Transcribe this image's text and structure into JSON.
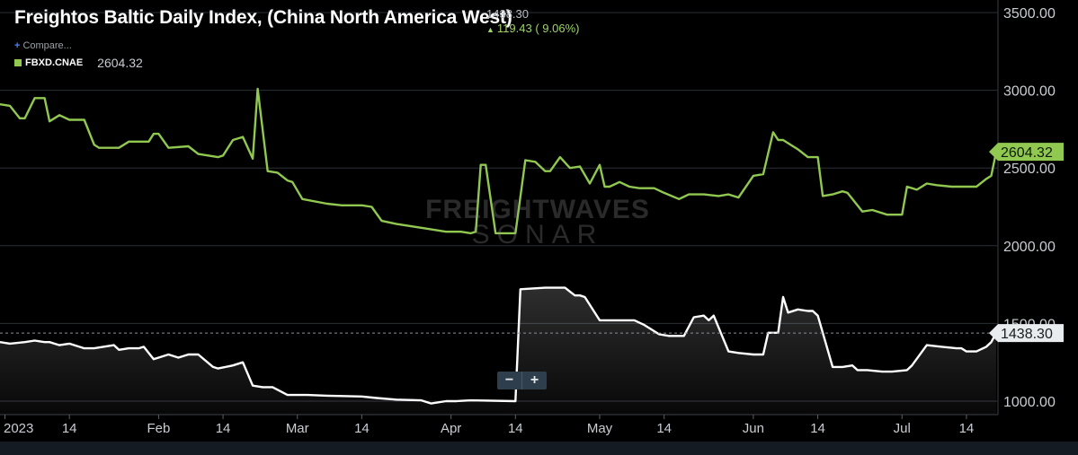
{
  "header": {
    "title": "Freightos Baltic Daily Index, (China North America West)",
    "last_value": "1438.30",
    "change_text": "119.43 ( 9.06%)",
    "change_arrow_icon": "triangle-up-icon"
  },
  "compare_label": "Compare...",
  "legend": {
    "symbol": "FBXD.CNAE",
    "value": "2604.32",
    "color": "#91c850"
  },
  "watermark": {
    "top": "FREIGHTWAVES",
    "bottom": "SONAR"
  },
  "zoom": {
    "minus": "−",
    "plus": "+"
  },
  "chart_data": {
    "type": "line",
    "title": "Freightos Baltic Daily Index, (China North America West)",
    "x_tick_labels": [
      "2023",
      "14",
      "Feb",
      "14",
      "Mar",
      "14",
      "Apr",
      "14",
      "May",
      "14",
      "Jun",
      "14",
      "Jul",
      "14"
    ],
    "x_tick_dates": [
      "2023-01-01",
      "2023-01-14",
      "2023-02-01",
      "2023-02-14",
      "2023-03-01",
      "2023-03-14",
      "2023-04-01",
      "2023-04-14",
      "2023-05-01",
      "2023-05-14",
      "2023-06-01",
      "2023-06-14",
      "2023-07-01",
      "2023-07-14"
    ],
    "y_tick_labels": [
      "1000.00",
      "1500.00",
      "2000.00",
      "2500.00",
      "3000.00",
      "3500.00"
    ],
    "ylim": [
      1000,
      3500
    ],
    "grid": true,
    "series": [
      {
        "name": "FBXD.CNAE",
        "color": "#91c850",
        "last_label": "2604.32",
        "x": [
          "2022-12-31",
          "2023-01-02",
          "2023-01-04",
          "2023-01-05",
          "2023-01-07",
          "2023-01-09",
          "2023-01-10",
          "2023-01-12",
          "2023-01-14",
          "2023-01-17",
          "2023-01-19",
          "2023-01-20",
          "2023-01-24",
          "2023-01-26",
          "2023-01-30",
          "2023-01-31",
          "2023-02-01",
          "2023-02-03",
          "2023-02-07",
          "2023-02-09",
          "2023-02-11",
          "2023-02-13",
          "2023-02-14",
          "2023-02-16",
          "2023-02-18",
          "2023-02-20",
          "2023-02-21",
          "2023-02-23",
          "2023-02-25",
          "2023-02-27",
          "2023-02-28",
          "2023-03-02",
          "2023-03-07",
          "2023-03-10",
          "2023-03-12",
          "2023-03-14",
          "2023-03-16",
          "2023-03-18",
          "2023-03-21",
          "2023-03-27",
          "2023-03-31",
          "2023-04-03",
          "2023-04-05",
          "2023-04-06",
          "2023-04-07",
          "2023-04-08",
          "2023-04-10",
          "2023-04-12",
          "2023-04-13",
          "2023-04-14",
          "2023-04-16",
          "2023-04-18",
          "2023-04-20",
          "2023-04-21",
          "2023-04-23",
          "2023-04-25",
          "2023-04-27",
          "2023-04-29",
          "2023-05-01",
          "2023-05-02",
          "2023-05-03",
          "2023-05-05",
          "2023-05-07",
          "2023-05-09",
          "2023-05-12",
          "2023-05-14",
          "2023-05-17",
          "2023-05-19",
          "2023-05-22",
          "2023-05-25",
          "2023-05-27",
          "2023-05-29",
          "2023-06-01",
          "2023-06-03",
          "2023-06-05",
          "2023-06-06",
          "2023-06-07",
          "2023-06-09",
          "2023-06-10",
          "2023-06-12",
          "2023-06-14",
          "2023-06-15",
          "2023-06-17",
          "2023-06-19",
          "2023-06-20",
          "2023-06-21",
          "2023-06-23",
          "2023-06-25",
          "2023-06-28",
          "2023-06-30",
          "2023-07-01",
          "2023-07-02",
          "2023-07-04",
          "2023-07-06",
          "2023-07-08",
          "2023-07-11",
          "2023-07-14",
          "2023-07-16",
          "2023-07-18",
          "2023-07-19",
          "2023-07-20"
        ],
        "values": [
          2910,
          2900,
          2820,
          2820,
          2950,
          2950,
          2800,
          2840,
          2810,
          2810,
          2650,
          2630,
          2630,
          2670,
          2670,
          2720,
          2720,
          2630,
          2640,
          2590,
          2580,
          2570,
          2580,
          2680,
          2700,
          2560,
          3010,
          2480,
          2470,
          2420,
          2410,
          2300,
          2270,
          2260,
          2260,
          2260,
          2250,
          2160,
          2140,
          2110,
          2090,
          2090,
          2080,
          2090,
          2520,
          2520,
          2080,
          2080,
          2080,
          2080,
          2550,
          2540,
          2480,
          2480,
          2570,
          2500,
          2510,
          2400,
          2520,
          2380,
          2380,
          2410,
          2380,
          2370,
          2370,
          2340,
          2300,
          2330,
          2330,
          2320,
          2330,
          2310,
          2450,
          2460,
          2730,
          2680,
          2680,
          2640,
          2620,
          2570,
          2570,
          2320,
          2330,
          2350,
          2340,
          2300,
          2220,
          2230,
          2200,
          2200,
          2200,
          2380,
          2360,
          2400,
          2390,
          2380,
          2380,
          2380,
          2430,
          2450,
          2604.32
        ]
      },
      {
        "name": "",
        "color": "#ffffff",
        "last_label": "1438.30",
        "x": [
          "2022-12-31",
          "2023-01-02",
          "2023-01-05",
          "2023-01-07",
          "2023-01-09",
          "2023-01-10",
          "2023-01-12",
          "2023-01-14",
          "2023-01-17",
          "2023-01-19",
          "2023-01-23",
          "2023-01-24",
          "2023-01-26",
          "2023-01-28",
          "2023-01-29",
          "2023-01-31",
          "2023-02-01",
          "2023-02-03",
          "2023-02-05",
          "2023-02-07",
          "2023-02-09",
          "2023-02-12",
          "2023-02-13",
          "2023-02-16",
          "2023-02-18",
          "2023-02-20",
          "2023-02-22",
          "2023-02-24",
          "2023-02-27",
          "2023-03-01",
          "2023-03-03",
          "2023-03-07",
          "2023-03-14",
          "2023-03-17",
          "2023-03-21",
          "2023-03-26",
          "2023-03-28",
          "2023-03-31",
          "2023-04-02",
          "2023-04-05",
          "2023-04-14",
          "2023-04-15",
          "2023-04-20",
          "2023-04-24",
          "2023-04-26",
          "2023-04-27",
          "2023-04-28",
          "2023-05-01",
          "2023-05-08",
          "2023-05-10",
          "2023-05-13",
          "2023-05-15",
          "2023-05-18",
          "2023-05-20",
          "2023-05-22",
          "2023-05-23",
          "2023-05-24",
          "2023-05-27",
          "2023-05-29",
          "2023-06-01",
          "2023-06-03",
          "2023-06-04",
          "2023-06-06",
          "2023-06-07",
          "2023-06-08",
          "2023-06-10",
          "2023-06-12",
          "2023-06-13",
          "2023-06-14",
          "2023-06-17",
          "2023-06-19",
          "2023-06-21",
          "2023-06-22",
          "2023-06-24",
          "2023-06-27",
          "2023-06-29",
          "2023-07-02",
          "2023-07-03",
          "2023-07-06",
          "2023-07-09",
          "2023-07-12",
          "2023-07-13",
          "2023-07-14",
          "2023-07-16",
          "2023-07-18",
          "2023-07-19",
          "2023-07-20"
        ],
        "values": [
          1380,
          1370,
          1380,
          1390,
          1380,
          1380,
          1360,
          1370,
          1340,
          1340,
          1360,
          1330,
          1340,
          1340,
          1350,
          1270,
          1280,
          1300,
          1280,
          1300,
          1300,
          1220,
          1210,
          1230,
          1250,
          1100,
          1090,
          1090,
          1040,
          1040,
          1040,
          1035,
          1030,
          1020,
          1010,
          1005,
          985,
          1000,
          1000,
          1005,
          1000,
          1720,
          1730,
          1730,
          1680,
          1680,
          1670,
          1520,
          1520,
          1490,
          1430,
          1420,
          1420,
          1540,
          1550,
          1520,
          1550,
          1320,
          1310,
          1300,
          1300,
          1440,
          1440,
          1670,
          1570,
          1590,
          1580,
          1580,
          1550,
          1220,
          1220,
          1230,
          1200,
          1200,
          1190,
          1190,
          1200,
          1230,
          1360,
          1350,
          1340,
          1340,
          1320,
          1320,
          1350,
          1380,
          1438.3
        ]
      }
    ]
  }
}
